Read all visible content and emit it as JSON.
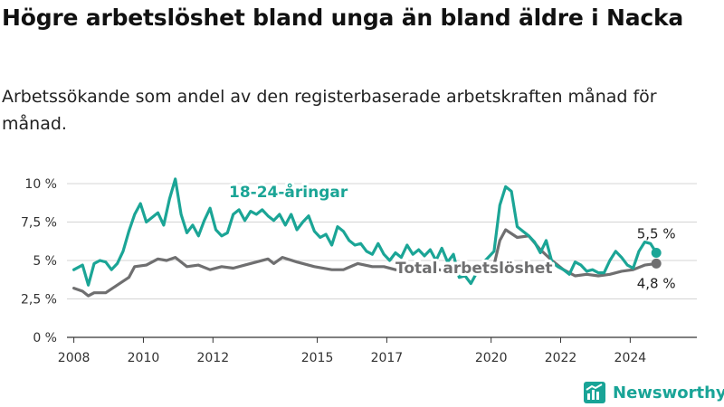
{
  "title": "Högre arbetslöshet bland unga än bland äldre i Nacka",
  "subtitle": "Arbetssökande som andel av den registerbaserade arbetskraften månad för månad.",
  "brand": {
    "name": "Newsworthy",
    "icon": "newsworthy-logo-icon"
  },
  "colors": {
    "youth": "#1ba596",
    "total": "#6f6f70",
    "grid": "#d4d4d4",
    "axis": "#333333"
  },
  "chart_data": {
    "type": "line",
    "title": "Högre arbetslöshet bland unga än bland äldre i Nacka",
    "subtitle": "Arbetssökande som andel av den registerbaserade arbetskraften månad för månad.",
    "xlabel": "",
    "ylabel": "",
    "x_ticks": [
      "2008",
      "2010",
      "2012",
      "2015",
      "2017",
      "2020",
      "2022",
      "2024"
    ],
    "y_ticks": [
      "0 %",
      "2,5 %",
      "5 %",
      "7,5 %",
      "10 %"
    ],
    "ylim": [
      0,
      10
    ],
    "xlim": [
      "2007-10",
      "2025-12"
    ],
    "grid": "horizontal",
    "series": [
      {
        "name": "18-24-åringar",
        "color": "#1ba596",
        "end_label": "5,5 %",
        "points": [
          [
            "2008-01",
            4.4
          ],
          [
            "2008-04",
            4.7
          ],
          [
            "2008-06",
            3.4
          ],
          [
            "2008-08",
            4.8
          ],
          [
            "2008-10",
            5.0
          ],
          [
            "2008-12",
            4.9
          ],
          [
            "2009-02",
            4.4
          ],
          [
            "2009-04",
            4.8
          ],
          [
            "2009-06",
            5.6
          ],
          [
            "2009-08",
            6.9
          ],
          [
            "2009-10",
            8.0
          ],
          [
            "2009-12",
            8.7
          ],
          [
            "2010-02",
            7.5
          ],
          [
            "2010-04",
            7.8
          ],
          [
            "2010-06",
            8.1
          ],
          [
            "2010-08",
            7.3
          ],
          [
            "2010-10",
            9.0
          ],
          [
            "2010-12",
            10.3
          ],
          [
            "2011-02",
            8.0
          ],
          [
            "2011-04",
            6.8
          ],
          [
            "2011-06",
            7.3
          ],
          [
            "2011-08",
            6.6
          ],
          [
            "2011-10",
            7.6
          ],
          [
            "2011-12",
            8.4
          ],
          [
            "2012-02",
            7.0
          ],
          [
            "2012-04",
            6.6
          ],
          [
            "2012-06",
            6.8
          ],
          [
            "2012-08",
            8.0
          ],
          [
            "2012-10",
            8.3
          ],
          [
            "2012-12",
            7.6
          ],
          [
            "2013-02",
            8.2
          ],
          [
            "2013-04",
            8.0
          ],
          [
            "2013-06",
            8.3
          ],
          [
            "2013-08",
            7.9
          ],
          [
            "2013-10",
            7.6
          ],
          [
            "2013-12",
            8.0
          ],
          [
            "2014-02",
            7.3
          ],
          [
            "2014-04",
            8.0
          ],
          [
            "2014-06",
            7.0
          ],
          [
            "2014-08",
            7.5
          ],
          [
            "2014-10",
            7.9
          ],
          [
            "2014-12",
            6.9
          ],
          [
            "2015-02",
            6.5
          ],
          [
            "2015-04",
            6.7
          ],
          [
            "2015-06",
            6.0
          ],
          [
            "2015-08",
            7.2
          ],
          [
            "2015-10",
            6.9
          ],
          [
            "2015-12",
            6.3
          ],
          [
            "2016-02",
            6.0
          ],
          [
            "2016-04",
            6.1
          ],
          [
            "2016-06",
            5.6
          ],
          [
            "2016-08",
            5.4
          ],
          [
            "2016-10",
            6.1
          ],
          [
            "2016-12",
            5.4
          ],
          [
            "2017-02",
            5.0
          ],
          [
            "2017-04",
            5.5
          ],
          [
            "2017-06",
            5.2
          ],
          [
            "2017-08",
            6.0
          ],
          [
            "2017-10",
            5.4
          ],
          [
            "2017-12",
            5.7
          ],
          [
            "2018-02",
            5.3
          ],
          [
            "2018-04",
            5.7
          ],
          [
            "2018-06",
            5.0
          ],
          [
            "2018-08",
            5.8
          ],
          [
            "2018-10",
            4.9
          ],
          [
            "2018-12",
            5.4
          ],
          [
            "2019-02",
            3.9
          ],
          [
            "2019-04",
            4.0
          ],
          [
            "2019-06",
            3.5
          ],
          [
            "2019-08",
            4.2
          ],
          [
            "2019-10",
            4.8
          ],
          [
            "2019-12",
            5.2
          ],
          [
            "2020-02",
            5.6
          ],
          [
            "2020-04",
            8.6
          ],
          [
            "2020-06",
            9.8
          ],
          [
            "2020-08",
            9.5
          ],
          [
            "2020-10",
            7.2
          ],
          [
            "2020-12",
            6.9
          ],
          [
            "2021-02",
            6.6
          ],
          [
            "2021-04",
            6.2
          ],
          [
            "2021-06",
            5.5
          ],
          [
            "2021-08",
            6.3
          ],
          [
            "2021-10",
            4.9
          ],
          [
            "2021-12",
            4.6
          ],
          [
            "2022-02",
            4.4
          ],
          [
            "2022-04",
            4.1
          ],
          [
            "2022-06",
            4.9
          ],
          [
            "2022-08",
            4.7
          ],
          [
            "2022-10",
            4.3
          ],
          [
            "2022-12",
            4.4
          ],
          [
            "2023-02",
            4.2
          ],
          [
            "2023-04",
            4.2
          ],
          [
            "2023-06",
            5.0
          ],
          [
            "2023-08",
            5.6
          ],
          [
            "2023-10",
            5.2
          ],
          [
            "2023-12",
            4.7
          ],
          [
            "2024-02",
            4.5
          ],
          [
            "2024-04",
            5.6
          ],
          [
            "2024-06",
            6.2
          ],
          [
            "2024-08",
            6.1
          ],
          [
            "2024-10",
            5.5
          ]
        ]
      },
      {
        "name": "Total arbetslöshet",
        "color": "#6f6f70",
        "end_label": "4,8 %",
        "points": [
          [
            "2008-01",
            3.2
          ],
          [
            "2008-04",
            3.0
          ],
          [
            "2008-06",
            2.7
          ],
          [
            "2008-08",
            2.9
          ],
          [
            "2008-12",
            2.9
          ],
          [
            "2009-04",
            3.4
          ],
          [
            "2009-08",
            3.9
          ],
          [
            "2009-10",
            4.6
          ],
          [
            "2010-02",
            4.7
          ],
          [
            "2010-06",
            5.1
          ],
          [
            "2010-09",
            5.0
          ],
          [
            "2010-12",
            5.2
          ],
          [
            "2011-04",
            4.6
          ],
          [
            "2011-08",
            4.7
          ],
          [
            "2011-12",
            4.4
          ],
          [
            "2012-04",
            4.6
          ],
          [
            "2012-08",
            4.5
          ],
          [
            "2012-12",
            4.7
          ],
          [
            "2013-04",
            4.9
          ],
          [
            "2013-08",
            5.1
          ],
          [
            "2013-10",
            4.8
          ],
          [
            "2014-01",
            5.2
          ],
          [
            "2014-06",
            4.9
          ],
          [
            "2014-12",
            4.6
          ],
          [
            "2015-06",
            4.4
          ],
          [
            "2015-10",
            4.4
          ],
          [
            "2016-03",
            4.8
          ],
          [
            "2016-08",
            4.6
          ],
          [
            "2016-12",
            4.6
          ],
          [
            "2017-04",
            4.4
          ],
          [
            "2017-10",
            4.3
          ],
          [
            "2018-04",
            4.5
          ],
          [
            "2018-10",
            4.3
          ],
          [
            "2019-04",
            4.2
          ],
          [
            "2019-10",
            4.4
          ],
          [
            "2020-02",
            4.7
          ],
          [
            "2020-04",
            6.3
          ],
          [
            "2020-06",
            7.0
          ],
          [
            "2020-10",
            6.5
          ],
          [
            "2021-02",
            6.6
          ],
          [
            "2021-06",
            5.7
          ],
          [
            "2021-10",
            5.0
          ],
          [
            "2022-02",
            4.4
          ],
          [
            "2022-06",
            4.0
          ],
          [
            "2022-10",
            4.1
          ],
          [
            "2023-02",
            4.0
          ],
          [
            "2023-06",
            4.1
          ],
          [
            "2023-10",
            4.3
          ],
          [
            "2024-02",
            4.4
          ],
          [
            "2024-06",
            4.7
          ],
          [
            "2024-10",
            4.8
          ]
        ]
      }
    ]
  }
}
